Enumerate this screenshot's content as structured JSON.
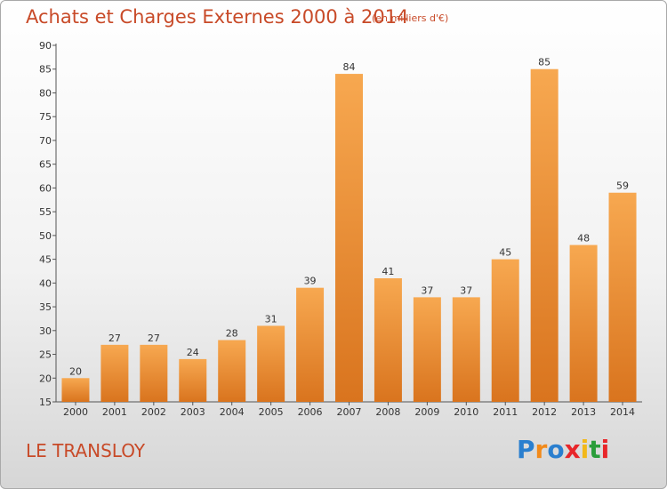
{
  "header": {
    "title": "Achats et Charges Externes 2000 à 2014",
    "subtitle": "(en milliers d'€)"
  },
  "footer": {
    "commune": "LE TRANSLOY",
    "logo_text": "Proxiti"
  },
  "colors": {
    "accent": "#c84a28",
    "bar_light": "#f7a850",
    "bar_dark": "#d9741e",
    "logo": [
      "#2a7fcf",
      "#f28a1a",
      "#2a7fcf",
      "#e8262a",
      "#f2b81a",
      "#2a9d3a",
      "#e8262a"
    ]
  },
  "chart_data": {
    "type": "bar",
    "categories": [
      "2000",
      "2001",
      "2002",
      "2003",
      "2004",
      "2005",
      "2006",
      "2007",
      "2008",
      "2009",
      "2010",
      "2011",
      "2012",
      "2013",
      "2014"
    ],
    "values": [
      20,
      27,
      27,
      24,
      28,
      31,
      39,
      84,
      41,
      37,
      37,
      45,
      85,
      48,
      59
    ],
    "ylim": [
      15,
      90
    ],
    "yticks": [
      15,
      20,
      25,
      30,
      35,
      40,
      45,
      50,
      55,
      60,
      65,
      70,
      75,
      80,
      85,
      90
    ],
    "grid": false,
    "title": "Achats et Charges Externes 2000 à 2014",
    "xlabel": "",
    "ylabel": ""
  }
}
